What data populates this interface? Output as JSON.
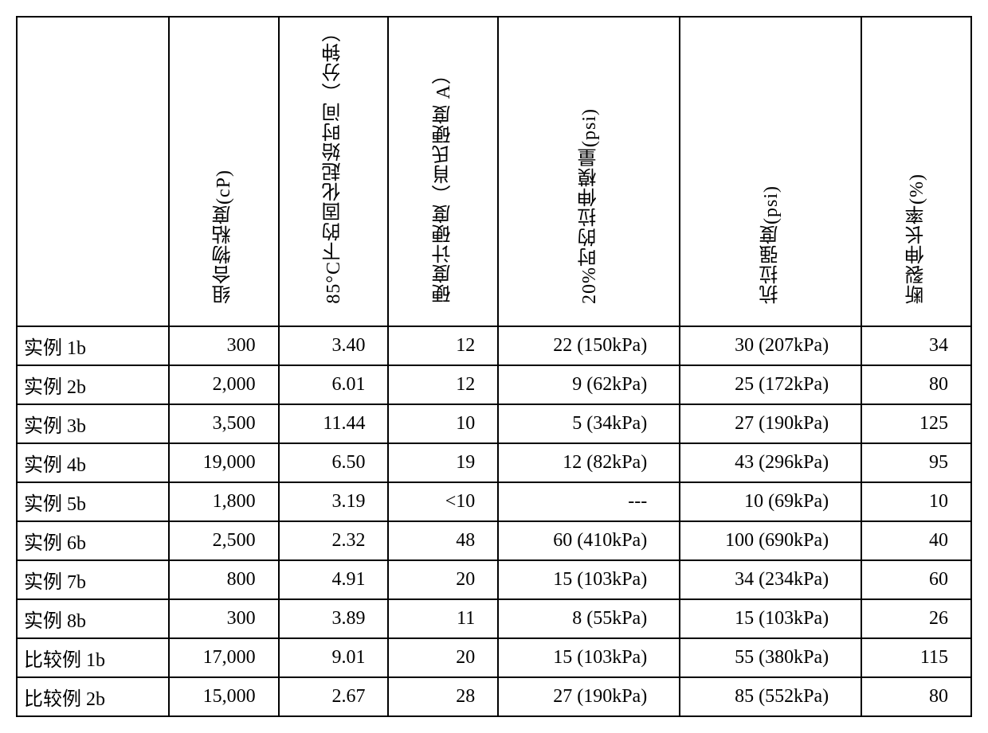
{
  "columns": [
    {
      "key": "label",
      "header": ""
    },
    {
      "key": "viscosity",
      "header": "组合物粘度(cP)"
    },
    {
      "key": "cure",
      "header": "85°C下的固化起始时间（分钟）"
    },
    {
      "key": "durometer",
      "header": "硬度计硬度（肖氏硬度 A）"
    },
    {
      "key": "modulus",
      "header": "20%时的拉伸模量(psi)"
    },
    {
      "key": "tensile",
      "header": "抗拉强度(psi)"
    },
    {
      "key": "elong",
      "header": "断裂伸长率(%)"
    }
  ],
  "rows": [
    {
      "label": "实例 1b",
      "viscosity": "300",
      "cure": "3.40",
      "durometer": "12",
      "modulus": "22 (150kPa)",
      "tensile": "30 (207kPa)",
      "elong": "34"
    },
    {
      "label": "实例 2b",
      "viscosity": "2,000",
      "cure": "6.01",
      "durometer": "12",
      "modulus": "9 (62kPa)",
      "tensile": "25 (172kPa)",
      "elong": "80"
    },
    {
      "label": "实例 3b",
      "viscosity": "3,500",
      "cure": "11.44",
      "durometer": "10",
      "modulus": "5 (34kPa)",
      "tensile": "27 (190kPa)",
      "elong": "125"
    },
    {
      "label": "实例 4b",
      "viscosity": "19,000",
      "cure": "6.50",
      "durometer": "19",
      "modulus": "12 (82kPa)",
      "tensile": "43 (296kPa)",
      "elong": "95"
    },
    {
      "label": "实例 5b",
      "viscosity": "1,800",
      "cure": "3.19",
      "durometer": "<10",
      "modulus": "---",
      "tensile": "10 (69kPa)",
      "elong": "10"
    },
    {
      "label": "实例 6b",
      "viscosity": "2,500",
      "cure": "2.32",
      "durometer": "48",
      "modulus": "60 (410kPa)",
      "tensile": "100 (690kPa)",
      "elong": "40"
    },
    {
      "label": "实例 7b",
      "viscosity": "800",
      "cure": "4.91",
      "durometer": "20",
      "modulus": "15 (103kPa)",
      "tensile": "34 (234kPa)",
      "elong": "60"
    },
    {
      "label": "实例 8b",
      "viscosity": "300",
      "cure": "3.89",
      "durometer": "11",
      "modulus": "8 (55kPa)",
      "tensile": "15 (103kPa)",
      "elong": "26"
    },
    {
      "label": "比较例 1b",
      "viscosity": "17,000",
      "cure": "9.01",
      "durometer": "20",
      "modulus": "15 (103kPa)",
      "tensile": "55 (380kPa)",
      "elong": "115"
    },
    {
      "label": "比较例 2b",
      "viscosity": "15,000",
      "cure": "2.67",
      "durometer": "28",
      "modulus": "27 (190kPa)",
      "tensile": "85 (552kPa)",
      "elong": "80"
    }
  ],
  "style": {
    "font_size_pt": 18,
    "border_color": "#000000",
    "background_color": "#ffffff",
    "text_color": "#000000",
    "header_rotation_deg": 90
  }
}
